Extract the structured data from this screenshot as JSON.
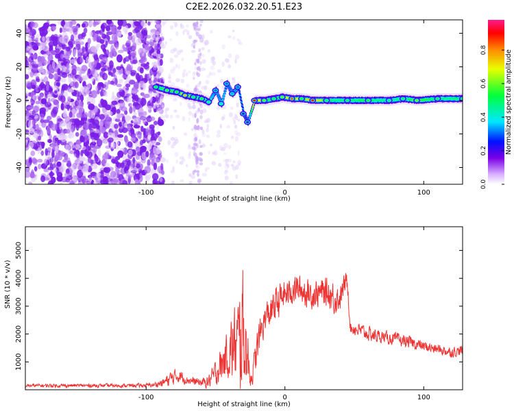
{
  "title": "C2E2.2026.032.20.51.E23",
  "chart_data": [
    {
      "type": "heatmap",
      "title": "C2E2.2026.032.20.51.E23",
      "xlabel": "Height of straight line (km)",
      "ylabel": "Frequency (Hz)",
      "xlim": [
        -187,
        128
      ],
      "ylim": [
        -50,
        48
      ],
      "xticks": [
        -100,
        0,
        100
      ],
      "xtick_labels": [
        "-100",
        "0",
        "100"
      ],
      "yticks": [
        -40,
        -20,
        0,
        20,
        40
      ],
      "ytick_labels": [
        "-40",
        "-20",
        "0",
        "20",
        "40"
      ],
      "colorbar": {
        "label": "Normalized spectral amplitude",
        "range": [
          0,
          0.98
        ],
        "ticks": [
          0.0,
          0.2,
          0.4,
          0.6,
          0.8
        ],
        "tick_labels": [
          "0.0",
          "0.2",
          "0.4",
          "0.6",
          "0.8"
        ],
        "stops": [
          "#ffffff",
          "#7a00e6",
          "#0010ff",
          "#00e8ff",
          "#00ff3a",
          "#e8ff00",
          "#ff8800",
          "#ff0000",
          "#ff1a8c"
        ]
      },
      "noise_region_x": [
        -187,
        -92
      ],
      "faint_band_x": [
        -66,
        -60
      ],
      "signal_trace": [
        {
          "x": -93,
          "y": 8,
          "amp": 0.55
        },
        {
          "x": -85,
          "y": 6,
          "amp": 0.6
        },
        {
          "x": -78,
          "y": 5,
          "amp": 0.55
        },
        {
          "x": -72,
          "y": 3,
          "amp": 0.75
        },
        {
          "x": -66,
          "y": 2,
          "amp": 0.5
        },
        {
          "x": -60,
          "y": 1,
          "amp": 0.55
        },
        {
          "x": -55,
          "y": -1,
          "amp": 0.45
        },
        {
          "x": -50,
          "y": 6,
          "amp": 0.3
        },
        {
          "x": -46,
          "y": -2,
          "amp": 0.4
        },
        {
          "x": -42,
          "y": 10,
          "amp": 0.3
        },
        {
          "x": -38,
          "y": 4,
          "amp": 0.35
        },
        {
          "x": -34,
          "y": 8,
          "amp": 0.3
        },
        {
          "x": -30,
          "y": -8,
          "amp": 0.25
        },
        {
          "x": -27,
          "y": -13,
          "amp": 0.2
        },
        {
          "x": -22,
          "y": 0,
          "amp": 0.9
        },
        {
          "x": -15,
          "y": 0,
          "amp": 0.6
        },
        {
          "x": -8,
          "y": 1,
          "amp": 0.55
        },
        {
          "x": -2,
          "y": 2,
          "amp": 0.6
        },
        {
          "x": 5,
          "y": 1,
          "amp": 0.85
        },
        {
          "x": 12,
          "y": 1,
          "amp": 0.55
        },
        {
          "x": 20,
          "y": 0,
          "amp": 0.9
        },
        {
          "x": 30,
          "y": 0,
          "amp": 0.5
        },
        {
          "x": 45,
          "y": 0,
          "amp": 0.5
        },
        {
          "x": 60,
          "y": 0,
          "amp": 0.55
        },
        {
          "x": 75,
          "y": 0,
          "amp": 0.45
        },
        {
          "x": 85,
          "y": 1,
          "amp": 0.5
        },
        {
          "x": 95,
          "y": 0,
          "amp": 0.6
        },
        {
          "x": 110,
          "y": 1,
          "amp": 0.5
        },
        {
          "x": 128,
          "y": 1,
          "amp": 0.5
        }
      ]
    },
    {
      "type": "line",
      "xlabel": "Height of straight line (km)",
      "ylabel": "SNR (10 * v/v)",
      "xlim": [
        -187,
        128
      ],
      "ylim": [
        0,
        5850
      ],
      "xticks": [
        -100,
        0,
        100
      ],
      "xtick_labels": [
        "-100",
        "0",
        "100"
      ],
      "yticks": [
        1000,
        2000,
        3000,
        4000,
        5000
      ],
      "ytick_labels": [
        "1000",
        "2000",
        "3000",
        "4000",
        "5000"
      ],
      "series": [
        {
          "name": "SNR",
          "color": "#ee3333",
          "envelope": {
            "x": [
              -187,
              -160,
              -130,
              -105,
              -95,
              -88,
              -82,
              -78,
              -74,
              -70,
              -66,
              -60,
              -55,
              -50,
              -46,
              -42,
              -38,
              -35,
              -32,
              -31,
              -30,
              -28,
              -26,
              -24,
              -22,
              -20,
              -17,
              -14,
              -10,
              -5,
              0,
              5,
              10,
              15,
              20,
              25,
              30,
              35,
              40,
              42,
              45,
              47,
              50,
              60,
              70,
              80,
              90,
              100,
              110,
              120,
              128
            ],
            "base": [
              150,
              150,
              150,
              150,
              170,
              250,
              400,
              500,
              450,
              350,
              300,
              250,
              300,
              600,
              900,
              1200,
              1500,
              1600,
              1700,
              2500,
              2000,
              1500,
              800,
              400,
              1000,
              1500,
              2200,
              2600,
              2800,
              3200,
              3400,
              3600,
              3600,
              3500,
              3400,
              3500,
              3500,
              3300,
              3300,
              3700,
              3900,
              2200,
              2200,
              2000,
              1900,
              1800,
              1700,
              1550,
              1450,
              1350,
              1400
            ],
            "amp": [
              80,
              80,
              80,
              90,
              100,
              200,
              400,
              300,
              300,
              200,
              200,
              200,
              300,
              600,
              900,
              1000,
              1700,
              2000,
              2700,
              3300,
              2600,
              1900,
              1000,
              400,
              600,
              900,
              800,
              700,
              800,
              800,
              700,
              700,
              700,
              700,
              700,
              700,
              700,
              800,
              600,
              500,
              500,
              300,
              350,
              350,
              300,
              300,
              300,
              250,
              250,
              250,
              250
            ]
          }
        }
      ]
    }
  ]
}
